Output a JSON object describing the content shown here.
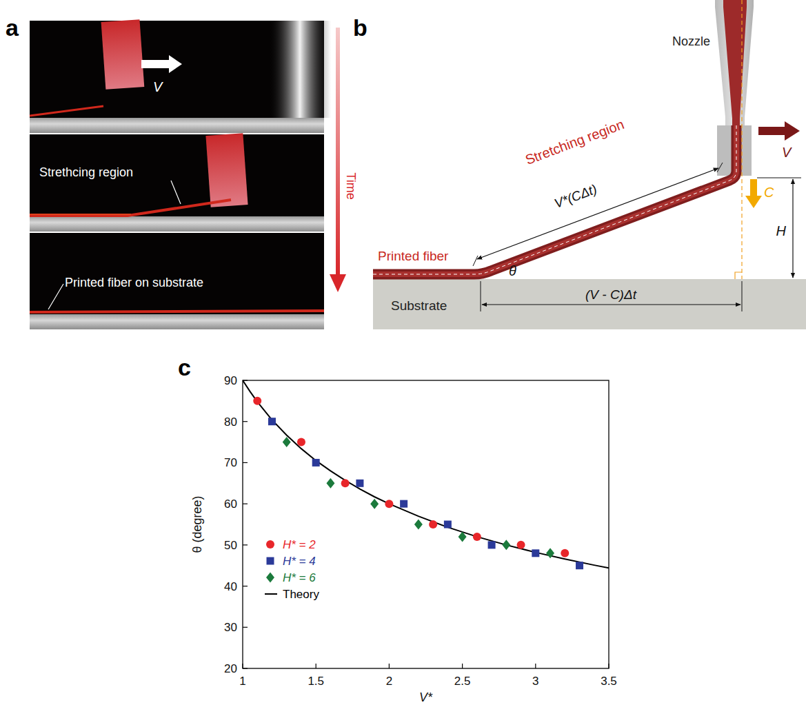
{
  "panel_letters": [
    "a",
    "b",
    "c"
  ],
  "panel_a": {
    "velocity": "V",
    "stretching_label": "Strethcing region",
    "printed_label": "Printed fiber on substrate",
    "time": "Time"
  },
  "panel_b": {
    "nozzle": "Nozzle",
    "velocity": "V",
    "feed": "C",
    "height": "H",
    "stretching_region": "Stretching region",
    "stretch_length": "V*(CΔt)",
    "angle": "θ",
    "printed_fiber": "Printed fiber",
    "substrate": "Substrate",
    "horizontal_length": "(V - C)Δt"
  },
  "chart_data": {
    "type": "scatter",
    "x_label": "V*",
    "y_label": "θ (degree)",
    "xlim": [
      1,
      3.5
    ],
    "ylim": [
      20,
      90
    ],
    "xticks": [
      1,
      1.5,
      2,
      2.5,
      3,
      3.5
    ],
    "yticks": [
      20,
      30,
      40,
      50,
      60,
      70,
      80,
      90
    ],
    "grid": false,
    "legend": "lower left",
    "series": [
      {
        "name": "H* = 2",
        "color": "#e8262a",
        "marker": "circle",
        "x": [
          1.1,
          1.4,
          1.7,
          2.0,
          2.3,
          2.6,
          2.9,
          3.2
        ],
        "values": [
          85,
          75,
          65,
          60,
          55,
          52,
          50,
          48
        ]
      },
      {
        "name": "H* = 4",
        "color": "#2b3a99",
        "marker": "square",
        "x": [
          1.2,
          1.5,
          1.8,
          2.1,
          2.4,
          2.7,
          3.0,
          3.3
        ],
        "values": [
          80,
          70,
          65,
          60,
          55,
          50,
          48,
          45
        ]
      },
      {
        "name": "H* = 6",
        "color": "#1b7a3c",
        "marker": "diamond",
        "x": [
          1.3,
          1.6,
          1.9,
          2.2,
          2.5,
          2.8,
          3.1
        ],
        "values": [
          75,
          65,
          60,
          55,
          52,
          50,
          48
        ]
      },
      {
        "name": "Theory",
        "type": "line",
        "color": "#000000",
        "line_style": "solid",
        "x": [
          1.0,
          1.05,
          1.1,
          1.2,
          1.3,
          1.4,
          1.5,
          1.6,
          1.7,
          1.8,
          1.9,
          2.0,
          2.2,
          2.4,
          2.6,
          2.8,
          3.0,
          3.2,
          3.4,
          3.5
        ],
        "values": [
          90,
          87.3,
          84.8,
          80.4,
          76.7,
          73.4,
          70.5,
          68.0,
          65.7,
          63.6,
          61.7,
          60,
          57.0,
          54.3,
          52.0,
          50.0,
          48.2,
          46.6,
          45.1,
          44.4
        ]
      }
    ]
  }
}
